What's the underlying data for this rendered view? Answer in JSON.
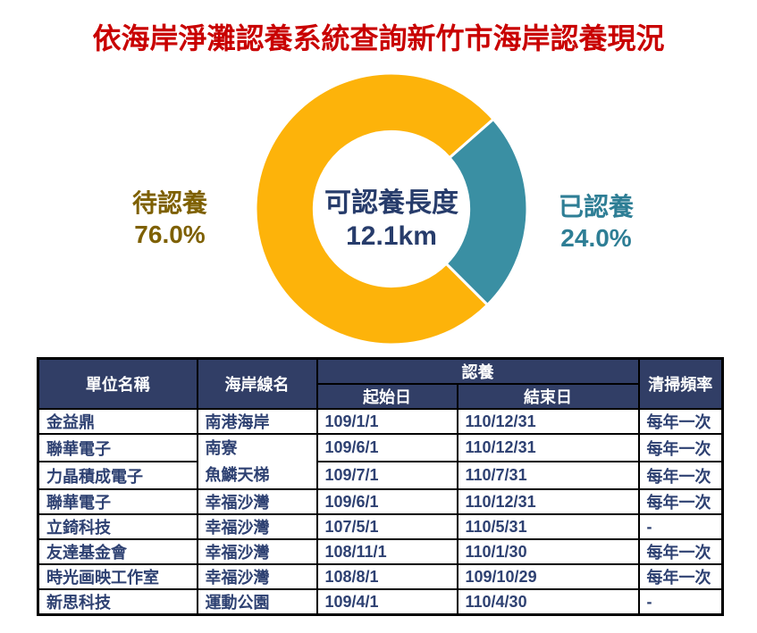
{
  "title": "依海岸淨灘認養系統查詢新竹市海岸認養現況",
  "title_color": "#C90000",
  "chart_data": [
    {
      "type": "pie",
      "subtype": "donut",
      "title": "",
      "slices": [
        {
          "label": "待認養",
          "value": 76.0,
          "pct_label": "76.0%",
          "color": "#FDB30A",
          "label_color": "#7E6000"
        },
        {
          "label": "已認養",
          "value": 24.0,
          "pct_label": "24.0%",
          "color": "#3A8FA3",
          "label_color": "#2E7E95"
        }
      ],
      "center_label": "可認養長度",
      "center_value": "12.1km",
      "center_text_color": "#273C6B",
      "start_angle_deg": 135,
      "hole_ratio": 0.57,
      "slice_gap_color": "#FFFFFF",
      "legend_position": "sides"
    },
    {
      "type": "table",
      "header": {
        "unit": "單位名稱",
        "coastline": "海岸線名",
        "adoption_group": "認養",
        "start": "起始日",
        "end": "結束日",
        "frequency": "清掃頻率"
      },
      "rows": [
        {
          "unit": "金益鼎",
          "coastline": "南港海岸",
          "start": "109/1/1",
          "end": "110/12/31",
          "freq": "每年一次"
        },
        {
          "unit": "聯華電子",
          "coastline": "南寮",
          "start": "109/6/1",
          "end": "110/12/31",
          "freq": "每年一次"
        },
        {
          "unit": "力晶積成電子",
          "coastline": "魚鱗天梯",
          "start": "109/7/1",
          "end": "110/7/31",
          "freq": "每年一次"
        },
        {
          "unit": "聯華電子",
          "coastline": "幸福沙灣",
          "start": "109/6/1",
          "end": "110/12/31",
          "freq": "每年一次"
        },
        {
          "unit": "立錡科技",
          "coastline": "幸福沙灣",
          "start": "107/5/1",
          "end": "110/5/31",
          "freq": "-"
        },
        {
          "unit": "友達基金會",
          "coastline": "幸福沙灣",
          "start": "108/11/1",
          "end": "110/1/30",
          "freq": "每年一次"
        },
        {
          "unit": "時光画映工作室",
          "coastline": "幸福沙灣",
          "start": "108/8/1",
          "end": "109/10/29",
          "freq": "每年一次"
        },
        {
          "unit": "新思科技",
          "coastline": "運動公園",
          "start": "109/4/1",
          "end": "110/4/30",
          "freq": "-"
        }
      ],
      "merged_coastline_rows": [
        2,
        3
      ],
      "colors": {
        "header_bg": "#313E66",
        "body_text": "#2E4172",
        "border": "#000000"
      }
    }
  ]
}
